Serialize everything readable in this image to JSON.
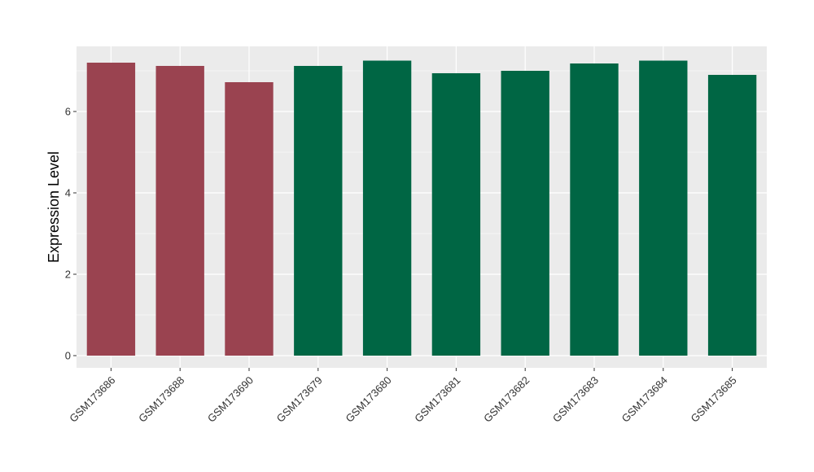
{
  "chart_data": {
    "type": "bar",
    "title": "",
    "xlabel": "",
    "ylabel": "Expression Level",
    "ylim": [
      -0.3,
      7.6
    ],
    "yticks": [
      0,
      2,
      4,
      6
    ],
    "ytick_labels": [
      "0",
      "2",
      "4",
      "6"
    ],
    "grid": true,
    "legend": "none",
    "panel_background": "#EBEBEB",
    "grid_color": "#FFFFFF",
    "categories": [
      "GSM173686",
      "GSM173688",
      "GSM173690",
      "GSM173679",
      "GSM173680",
      "GSM173681",
      "GSM173682",
      "GSM173683",
      "GSM173684",
      "GSM173685"
    ],
    "values": [
      7.2,
      7.12,
      6.72,
      7.12,
      7.25,
      6.94,
      7.0,
      7.18,
      7.25,
      6.9
    ],
    "bar_colors": [
      "#9A4350",
      "#9A4350",
      "#9A4350",
      "#006644",
      "#006644",
      "#006644",
      "#006644",
      "#006644",
      "#006644",
      "#006644"
    ]
  }
}
